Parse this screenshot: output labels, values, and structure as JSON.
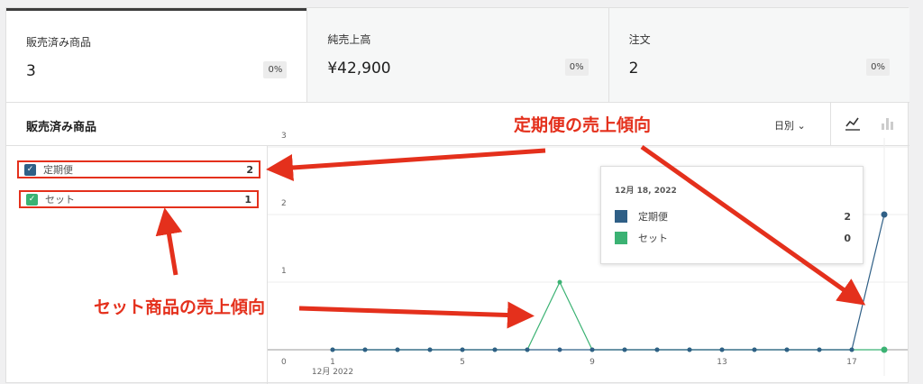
{
  "cards": [
    {
      "label": "販売済み商品",
      "value": "3",
      "change": "0%"
    },
    {
      "label": "純売上高",
      "value": "¥42,900",
      "change": "0%"
    },
    {
      "label": "注文",
      "value": "2",
      "change": "0%"
    }
  ],
  "header": {
    "title": "販売済み商品",
    "interval": "日別",
    "line_icon": "line-chart-icon",
    "bar_icon": "bar-chart-icon"
  },
  "legend": [
    {
      "label": "定期便",
      "total": "2",
      "color": "#2f5f86"
    },
    {
      "label": "セット",
      "total": "1",
      "color": "#3bb273"
    }
  ],
  "tooltip": {
    "date": "12月 18, 2022",
    "rows": [
      {
        "label": "定期便",
        "value": "2"
      },
      {
        "label": "セット",
        "value": "0"
      }
    ]
  },
  "annotations": {
    "top": "定期便の売上傾向",
    "bottom": "セット商品の売上傾向"
  },
  "chart_data": {
    "type": "line",
    "x": [
      1,
      2,
      3,
      4,
      5,
      6,
      7,
      8,
      9,
      10,
      11,
      12,
      13,
      14,
      15,
      16,
      17,
      18
    ],
    "x_tick_labels": [
      "1",
      "5",
      "9",
      "13",
      "17"
    ],
    "x_sub_label": "12月 2022",
    "y_tick_labels": [
      "0",
      "1",
      "2",
      "3"
    ],
    "ylim": [
      0,
      3
    ],
    "grid": true,
    "series": [
      {
        "name": "定期便",
        "color": "#2f5f86",
        "values": [
          0,
          0,
          0,
          0,
          0,
          0,
          0,
          0,
          0,
          0,
          0,
          0,
          0,
          0,
          0,
          0,
          0,
          2
        ]
      },
      {
        "name": "セット",
        "color": "#3bb273",
        "values": [
          0,
          0,
          0,
          0,
          0,
          0,
          0,
          1,
          0,
          0,
          0,
          0,
          0,
          0,
          0,
          0,
          0,
          0
        ]
      }
    ]
  }
}
